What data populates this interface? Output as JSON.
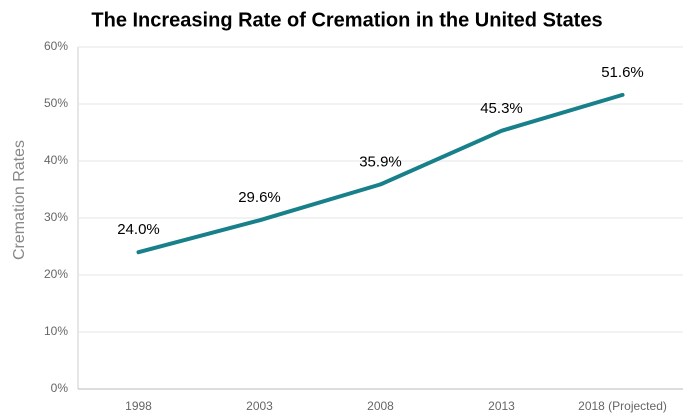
{
  "chart_data": {
    "type": "line",
    "title": "The Increasing Rate of Cremation in the United States",
    "ylabel": "Cremation Rates",
    "categories": [
      "1998",
      "2003",
      "2008",
      "2013",
      "2018 (Projected)"
    ],
    "values": [
      24.0,
      29.6,
      35.9,
      45.3,
      51.6
    ],
    "value_labels": [
      "24.0%",
      "29.6%",
      "35.9%",
      "45.3%",
      "51.6%"
    ],
    "color": "#17808a",
    "ylim": [
      0,
      60
    ],
    "yticks": [
      {
        "value": 0,
        "label": "0%"
      },
      {
        "value": 10,
        "label": "10%"
      },
      {
        "value": 20,
        "label": "20%"
      },
      {
        "value": 30,
        "label": "30%"
      },
      {
        "value": 40,
        "label": "40%"
      },
      {
        "value": 50,
        "label": "50%"
      },
      {
        "value": 60,
        "label": "60%"
      }
    ],
    "grid": true
  }
}
